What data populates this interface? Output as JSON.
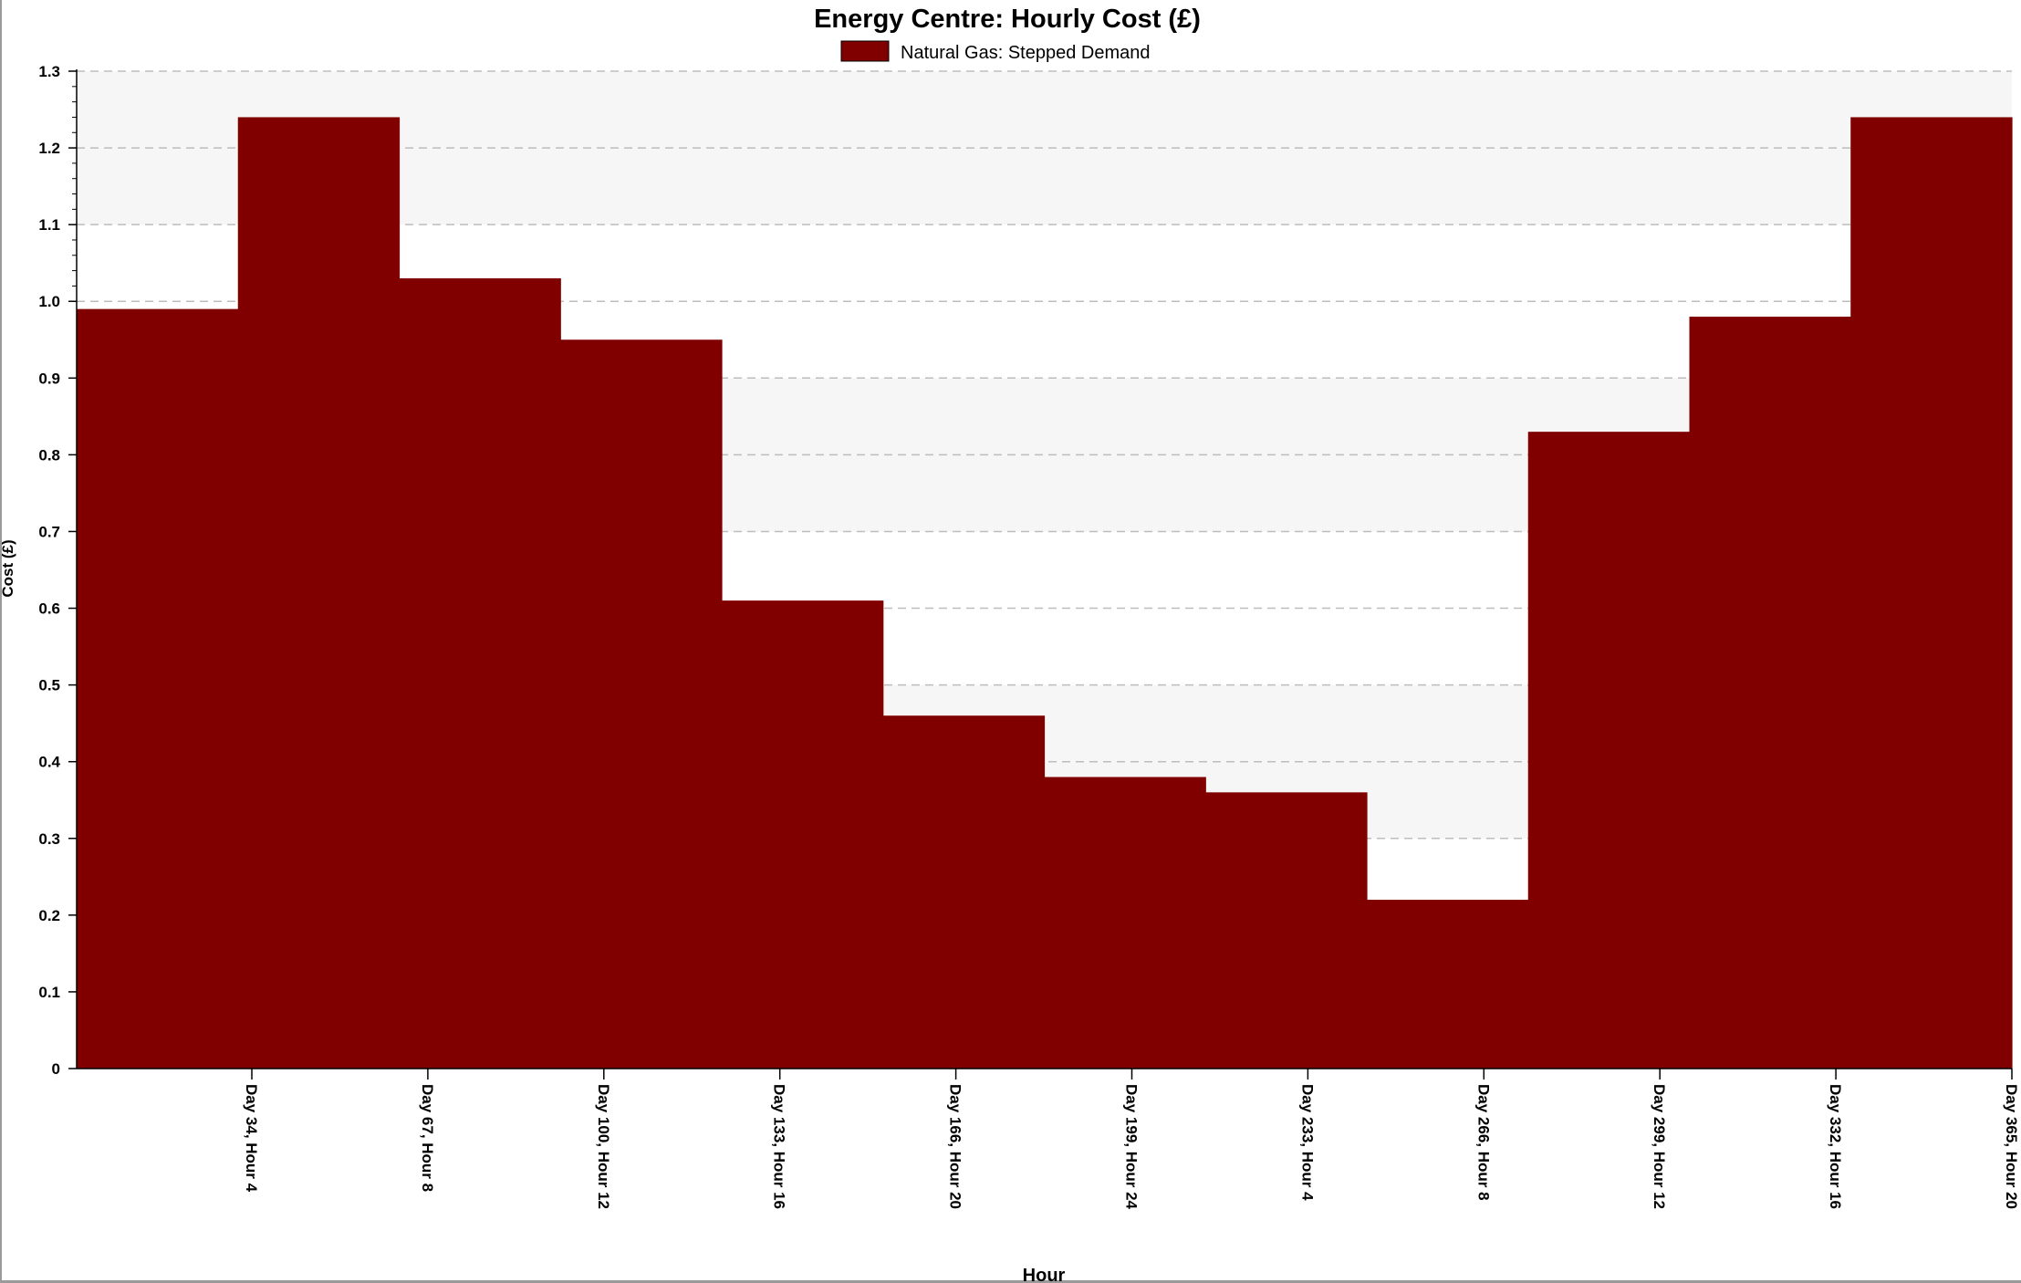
{
  "chart_data": {
    "type": "area",
    "step": true,
    "title": "Energy Centre: Hourly Cost (£)",
    "xlabel": "Hour",
    "ylabel": "Cost (£)",
    "ylim": [
      0,
      1.3
    ],
    "y_ticks": [
      "0",
      "0.1",
      "0.2",
      "0.3",
      "0.4",
      "0.5",
      "0.6",
      "0.7",
      "0.8",
      "0.9",
      "1.0",
      "1.1",
      "1.2",
      "1.3"
    ],
    "x_tick_labels": [
      "Day 34, Hour 4",
      "Day 67, Hour 8",
      "Day 100, Hour 12",
      "Day 133, Hour 16",
      "Day 166, Hour 20",
      "Day 199, Hour 24",
      "Day 233, Hour 4",
      "Day 266, Hour 8",
      "Day 299, Hour 12",
      "Day 332, Hour 16",
      "Day 365, Hour 20"
    ],
    "legend": {
      "position": "top-center",
      "entries": [
        "Natural Gas: Stepped Demand"
      ]
    },
    "grid": {
      "horizontal": true,
      "style": "dashed",
      "banded_background": true
    },
    "series": [
      {
        "name": "Natural Gas: Stepped Demand",
        "color": "#800000",
        "steps": [
          {
            "value": 0.99
          },
          {
            "value": 1.24
          },
          {
            "value": 1.03
          },
          {
            "value": 0.95
          },
          {
            "value": 0.61
          },
          {
            "value": 0.46
          },
          {
            "value": 0.38
          },
          {
            "value": 0.36
          },
          {
            "value": 0.22
          },
          {
            "value": 0.83
          },
          {
            "value": 0.98
          },
          {
            "value": 1.24
          }
        ]
      }
    ]
  }
}
